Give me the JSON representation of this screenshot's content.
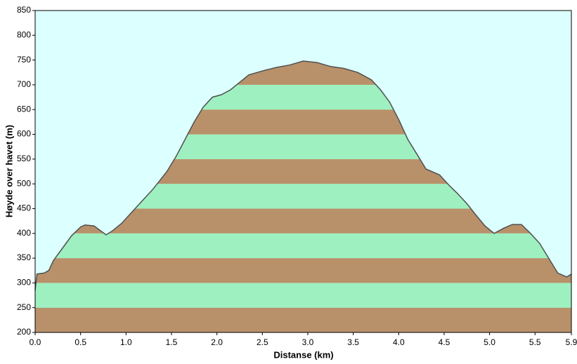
{
  "chart_data": {
    "type": "area",
    "x_label": "Distanse  (km)",
    "y_label": "Høyde over havet (m)",
    "x": [
      0.0,
      0.02,
      0.1,
      0.15,
      0.2,
      0.3,
      0.4,
      0.5,
      0.55,
      0.65,
      0.7,
      0.78,
      0.85,
      0.95,
      1.05,
      1.15,
      1.3,
      1.45,
      1.55,
      1.65,
      1.75,
      1.85,
      1.95,
      2.05,
      2.15,
      2.25,
      2.35,
      2.5,
      2.65,
      2.8,
      2.95,
      3.1,
      3.25,
      3.4,
      3.55,
      3.7,
      3.8,
      3.9,
      4.0,
      4.1,
      4.2,
      4.3,
      4.45,
      4.55,
      4.65,
      4.75,
      4.85,
      4.95,
      5.05,
      5.15,
      5.25,
      5.35,
      5.45,
      5.55,
      5.65,
      5.75,
      5.85,
      5.9
    ],
    "series": [
      {
        "name": "Høyde",
        "color": "#505050",
        "values": [
          285,
          318,
          320,
          325,
          345,
          370,
          395,
          413,
          417,
          415,
          408,
          397,
          405,
          420,
          440,
          460,
          490,
          525,
          555,
          590,
          625,
          655,
          675,
          680,
          690,
          705,
          720,
          728,
          735,
          740,
          748,
          745,
          737,
          733,
          725,
          710,
          690,
          665,
          630,
          590,
          560,
          530,
          518,
          498,
          480,
          460,
          437,
          415,
          400,
          410,
          418,
          418,
          400,
          380,
          350,
          320,
          312,
          318
        ]
      }
    ],
    "xlim": [
      0,
      5.9
    ],
    "xticks": [
      {
        "value": 0,
        "label": "0.0"
      },
      0.5,
      {
        "value": 1,
        "label": "1.0"
      },
      1.5,
      {
        "value": 2,
        "label": "2.0"
      },
      2.5,
      {
        "value": 3,
        "label": "3.0"
      },
      3.5,
      {
        "value": 4,
        "label": "4.0"
      },
      4.5,
      {
        "value": 5,
        "label": "5.0"
      },
      5.5,
      5.9
    ],
    "ylim": [
      200,
      850
    ],
    "yticks": [
      200,
      250,
      300,
      350,
      400,
      450,
      500,
      550,
      600,
      650,
      700,
      750,
      800,
      850
    ],
    "background_color": "#dcffff",
    "band_colors": [
      "#b8916a",
      "#9ef0c0"
    ]
  }
}
